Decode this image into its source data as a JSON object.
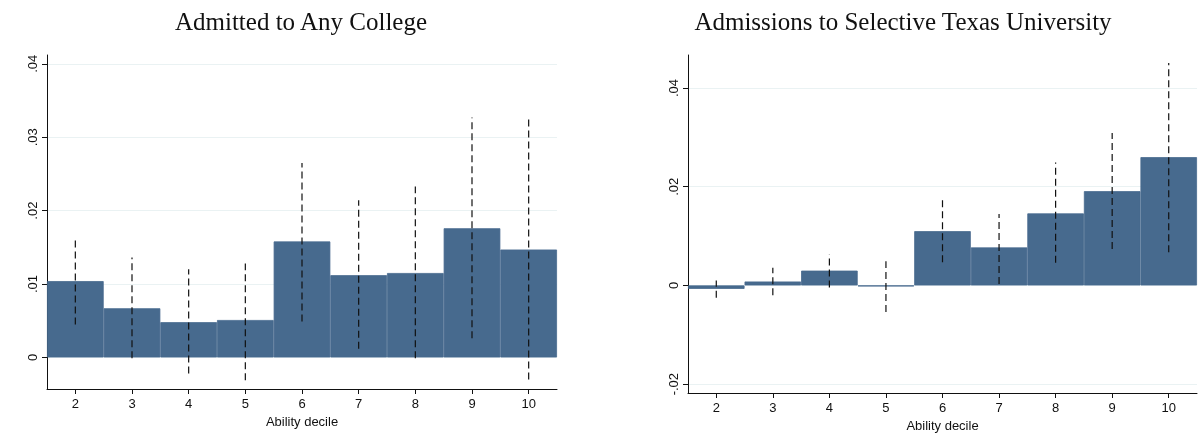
{
  "chart_data": [
    {
      "type": "bar",
      "title": "Admitted to Any College",
      "xlabel": "Ability decile",
      "categories": [
        "2",
        "3",
        "4",
        "5",
        "6",
        "7",
        "8",
        "9",
        "10"
      ],
      "color": "#476a8e",
      "values": [
        0.0104,
        0.0067,
        0.0048,
        0.0051,
        0.0158,
        0.0112,
        0.0115,
        0.0176,
        0.0147
      ],
      "errors": [
        [
          0.0045,
          0.0164
        ],
        [
          -0.0001,
          0.0136
        ],
        [
          -0.0022,
          0.012
        ],
        [
          -0.0031,
          0.0128
        ],
        [
          0.0049,
          0.0265
        ],
        [
          0.0012,
          0.0214
        ],
        [
          -0.0001,
          0.0233
        ],
        [
          0.0026,
          0.0327
        ],
        [
          -0.003,
          0.0324
        ]
      ],
      "ylim": [
        -0.0043,
        0.0412
      ],
      "yticks": [
        0,
        {
          "value": 0.01,
          "label": ".01"
        },
        {
          "value": 0.02,
          "label": ".02"
        },
        {
          "value": 0.03,
          "label": ".03"
        },
        {
          "value": 0.04,
          "label": ".04"
        }
      ],
      "grid": "y"
    },
    {
      "type": "bar",
      "title": "Admissions to Selective Texas University",
      "xlabel": "Ability decile",
      "categories": [
        "2",
        "3",
        "4",
        "5",
        "6",
        "7",
        "8",
        "9",
        "10"
      ],
      "color": "#476a8e",
      "values": [
        -0.0007,
        0.0008,
        0.003,
        -0.0002,
        0.011,
        0.0077,
        0.0146,
        0.0191,
        0.026
      ],
      "errors": [
        [
          -0.0025,
          0.001
        ],
        [
          -0.002,
          0.0036
        ],
        [
          -0.0004,
          0.0063
        ],
        [
          -0.0054,
          0.0049
        ],
        [
          0.0047,
          0.0175
        ],
        [
          0.0003,
          0.0145
        ],
        [
          0.0046,
          0.0249
        ],
        [
          0.0074,
          0.0309
        ],
        [
          0.0067,
          0.0451
        ]
      ],
      "ylim": [
        -0.0218,
        0.0467
      ],
      "yticks": [
        {
          "value": -0.02,
          "label": "-.02"
        },
        0,
        {
          "value": 0.02,
          "label": ".02"
        },
        {
          "value": 0.04,
          "label": ".04"
        }
      ],
      "grid": "y"
    }
  ]
}
